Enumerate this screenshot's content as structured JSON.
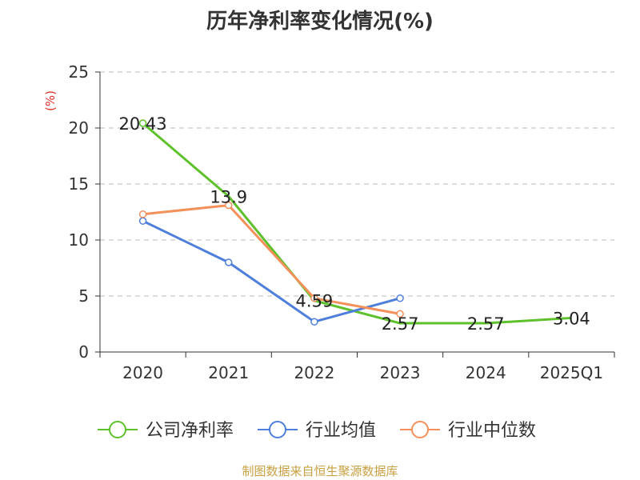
{
  "chart_data": {
    "type": "line",
    "title": "历年净利率变化情况(%)",
    "ylabel": "(%)",
    "xlabel": "",
    "categories": [
      "2020",
      "2021",
      "2022",
      "2023",
      "2024",
      "2025Q1"
    ],
    "ylim": [
      0,
      25
    ],
    "yticks": [
      "0",
      "5",
      "10",
      "15",
      "20",
      "25"
    ],
    "grid": true,
    "legend_placement": "bottom",
    "series": [
      {
        "name": "公司净利率",
        "color": "#5cc12a",
        "values": [
          20.43,
          13.9,
          4.59,
          2.57,
          2.57,
          3.04
        ],
        "labels": [
          "20.43",
          "13.9",
          "4.59",
          "2.57",
          "2.57",
          "3.04"
        ],
        "show_markers": [
          true,
          false,
          false,
          false,
          false,
          false
        ]
      },
      {
        "name": "行业均值",
        "color": "#4f7fdc",
        "values": [
          11.7,
          8.0,
          2.7,
          4.8,
          null,
          null
        ],
        "show_markers": [
          true,
          true,
          true,
          true,
          false,
          false
        ]
      },
      {
        "name": "行业中位数",
        "color": "#f4905a",
        "values": [
          12.3,
          13.1,
          4.8,
          3.4,
          null,
          null
        ],
        "show_markers": [
          true,
          true,
          true,
          true,
          false,
          false
        ]
      }
    ]
  },
  "source": "制图数据来自恒生聚源数据库"
}
